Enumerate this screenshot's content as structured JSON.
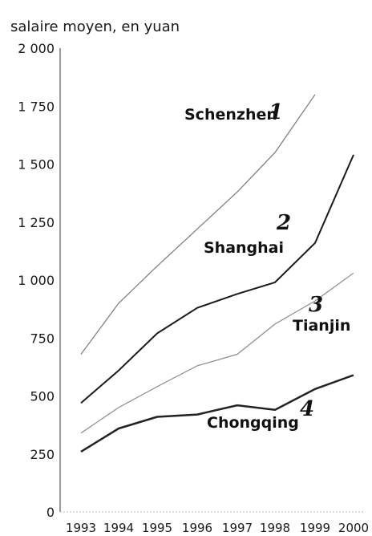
{
  "chart_data": {
    "type": "line",
    "ylabel": "salaire moyen, en yuan",
    "y_ticks": [
      "0",
      "250",
      "500",
      "750",
      "1 000",
      "1 250",
      "1 500",
      "1 750",
      "2 000"
    ],
    "ylim": [
      0,
      2000
    ],
    "x": [
      "1993",
      "1994",
      "1995",
      "1996",
      "1997",
      "1998",
      "1999",
      "2000"
    ],
    "grid": false,
    "legend": "inline labels",
    "series": [
      {
        "name": "Schenzhen",
        "number": "1",
        "color": "#7a7a7a",
        "values": [
          680,
          900,
          1060,
          1220,
          1380,
          1550,
          1800,
          null
        ]
      },
      {
        "name": "Shanghai",
        "number": "2",
        "color": "#1a1a1a",
        "values": [
          470,
          610,
          770,
          880,
          940,
          990,
          1160,
          1540
        ]
      },
      {
        "name": "Tianjin",
        "number": "3",
        "color": "#8a8a8a",
        "values": [
          340,
          450,
          540,
          630,
          680,
          810,
          910,
          1030
        ]
      },
      {
        "name": "Chongqing",
        "number": "4",
        "color": "#222222",
        "values": [
          260,
          360,
          410,
          420,
          460,
          440,
          530,
          590
        ]
      }
    ]
  }
}
